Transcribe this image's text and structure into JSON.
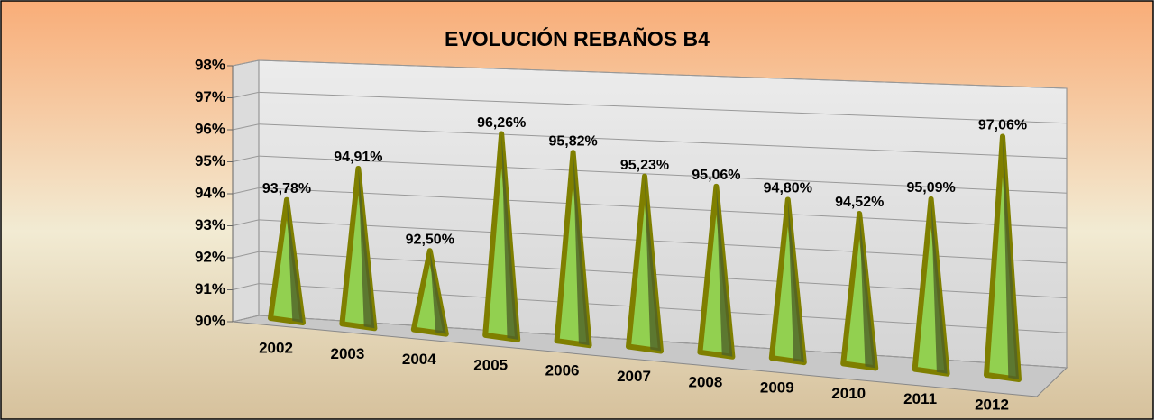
{
  "chart_data": {
    "type": "bar",
    "title": "EVOLUCIÓN REBAÑOS B4",
    "categories": [
      "2002",
      "2003",
      "2004",
      "2005",
      "2006",
      "2007",
      "2008",
      "2009",
      "2010",
      "2011",
      "2012"
    ],
    "values": [
      93.78,
      94.91,
      92.5,
      96.26,
      95.82,
      95.23,
      95.06,
      94.8,
      94.52,
      95.09,
      97.06
    ],
    "value_labels": [
      "93,78%",
      "94,91%",
      "92,50%",
      "96,26%",
      "95,82%",
      "95,23%",
      "95,06%",
      "94,80%",
      "94,52%",
      "95,09%",
      "97,06%"
    ],
    "color": "#92d050",
    "ylim": [
      90,
      98
    ],
    "yticks": [
      {
        "value": 90,
        "label": "90%"
      },
      {
        "value": 91,
        "label": "91%"
      },
      {
        "value": 92,
        "label": "92%"
      },
      {
        "value": 93,
        "label": "93%"
      },
      {
        "value": 94,
        "label": "94%"
      },
      {
        "value": 95,
        "label": "95%"
      },
      {
        "value": 96,
        "label": "96%"
      },
      {
        "value": 97,
        "label": "97%"
      },
      {
        "value": 98,
        "label": "98%"
      }
    ],
    "grid": true
  }
}
